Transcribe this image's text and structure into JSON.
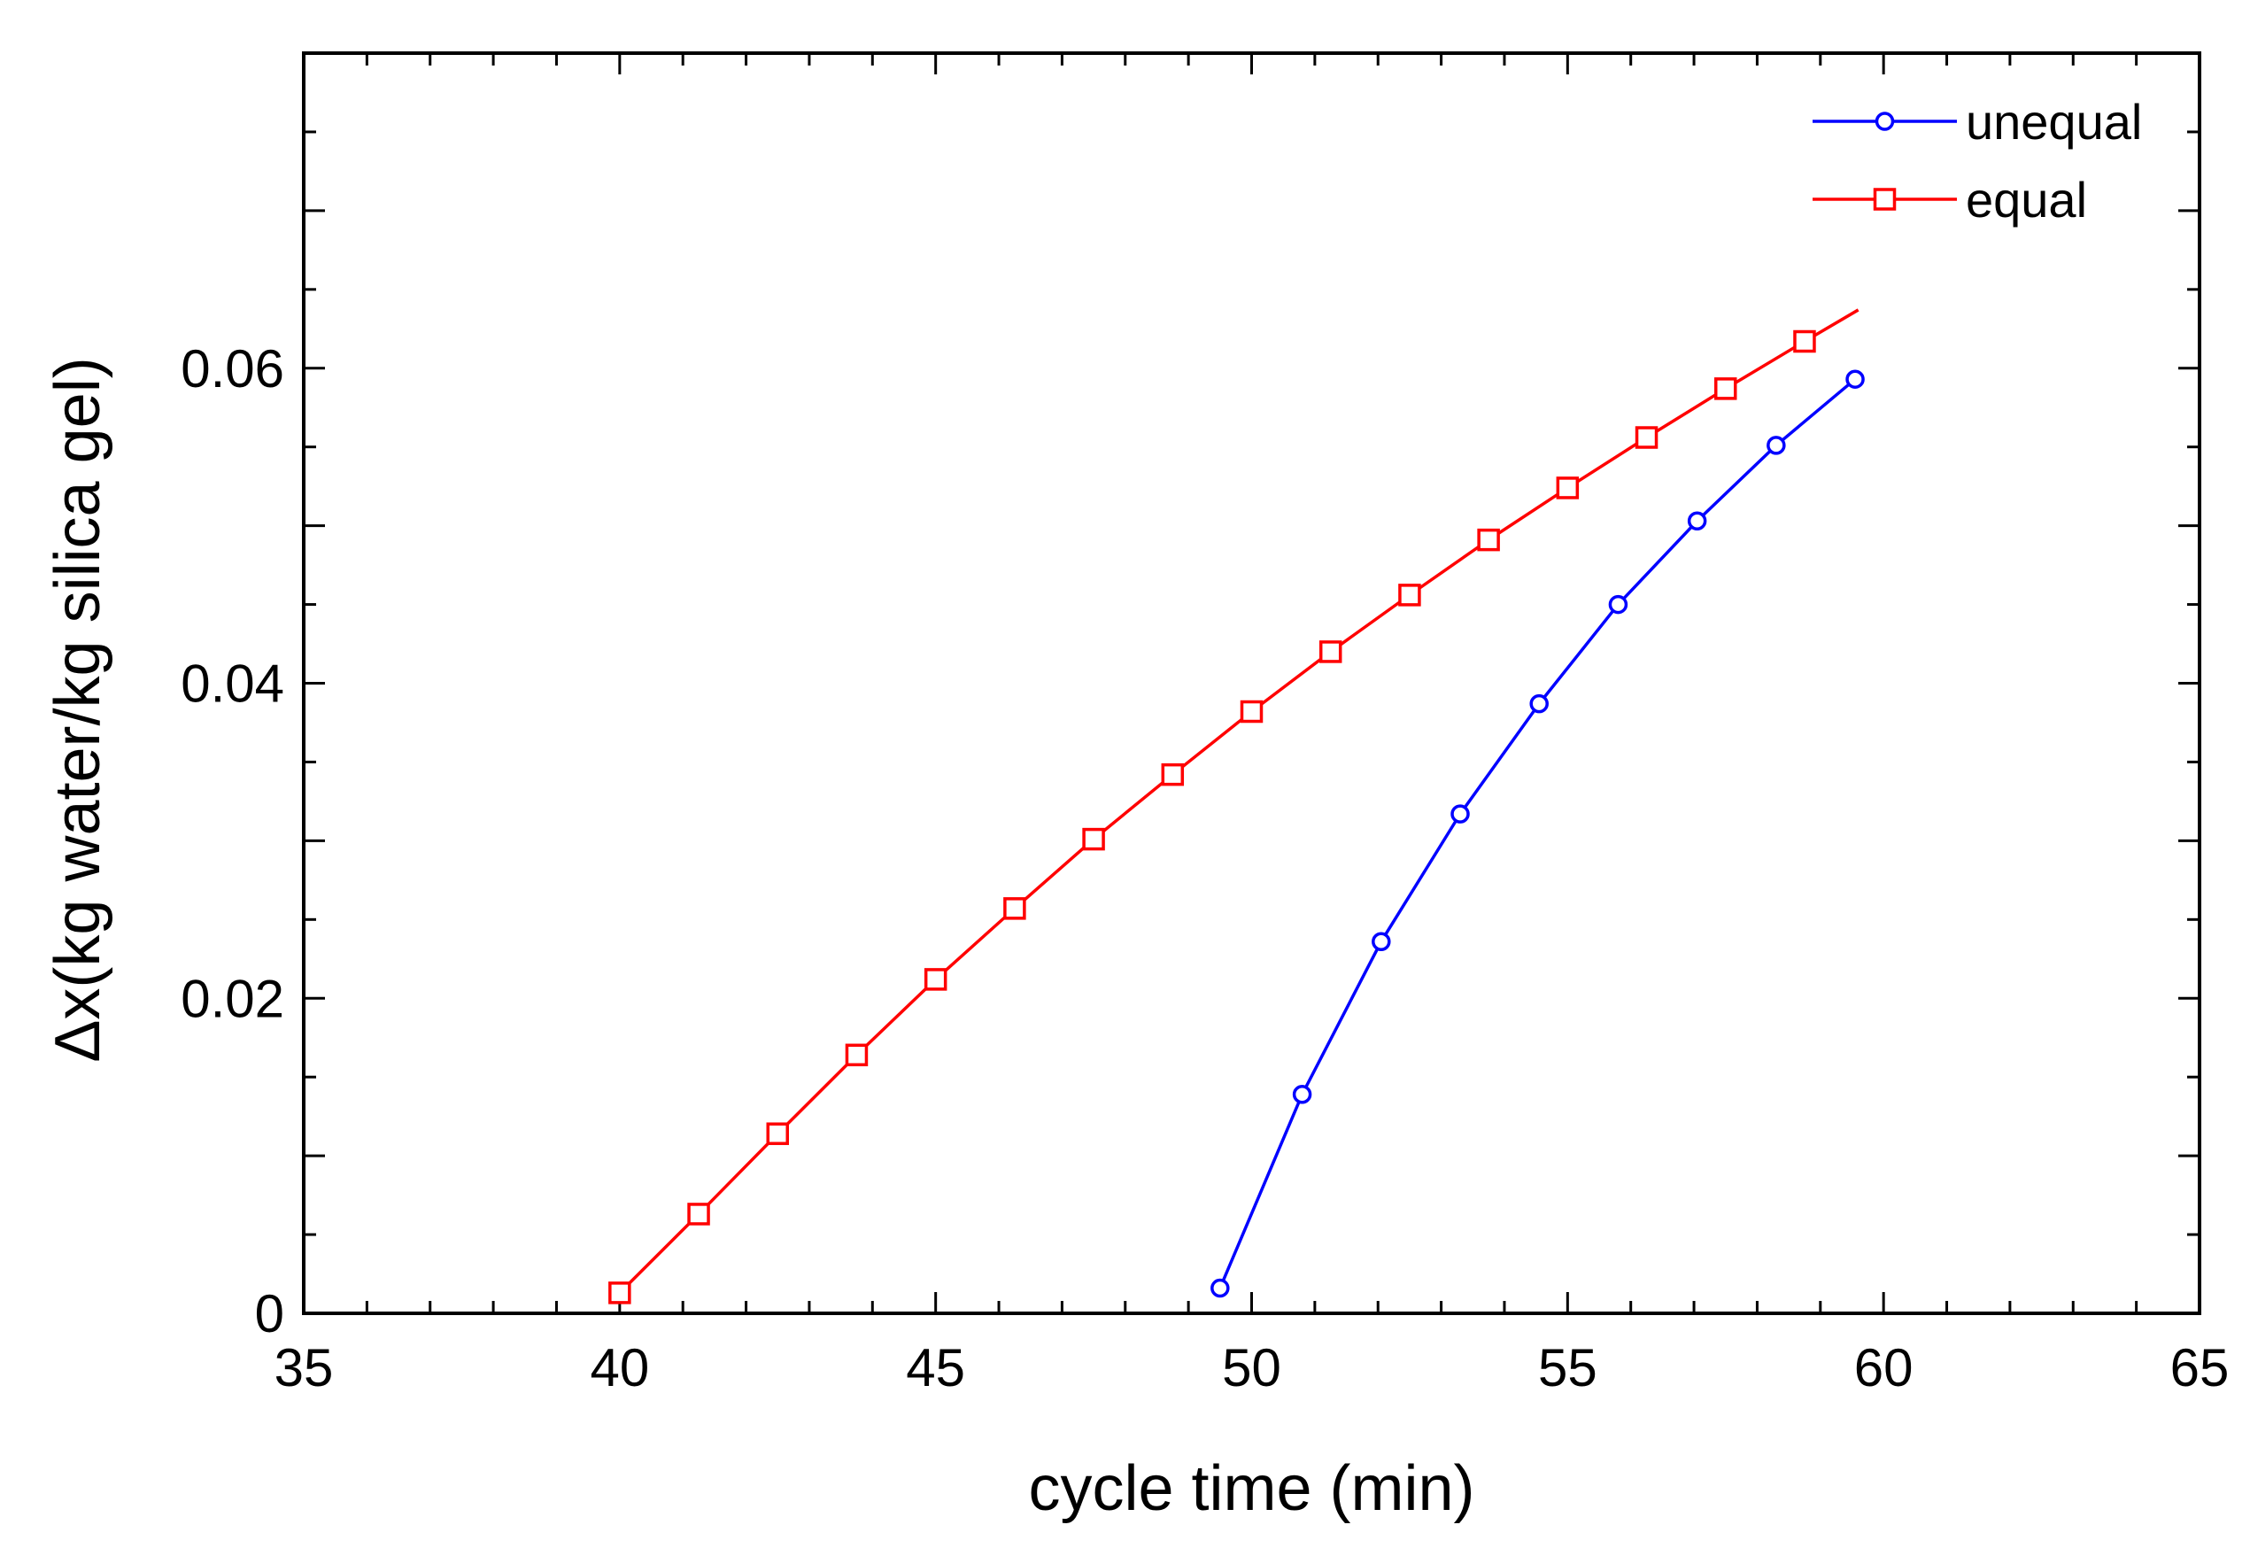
{
  "chart_data": {
    "type": "line",
    "title": "",
    "xlabel": "cycle time (min)",
    "ylabel": "Δx(kg water/kg silica gel)",
    "xlim": [
      35,
      65
    ],
    "ylim": [
      0,
      0.08
    ],
    "x_ticks": [
      35,
      40,
      45,
      50,
      55,
      60,
      65
    ],
    "x_tick_labels": [
      "35",
      "40",
      "45",
      "50",
      "55",
      "60",
      "65"
    ],
    "y_ticks": [
      0,
      0.02,
      0.04,
      0.06
    ],
    "y_tick_labels": [
      "0",
      "0.02",
      "0.04",
      "0.06"
    ],
    "grid": false,
    "legend_position": "top-right",
    "series": [
      {
        "name": "unequal",
        "color": "#0000ff",
        "marker": "circle",
        "x": [
          49.5,
          50.8,
          52.05,
          53.3,
          54.55,
          55.8,
          57.05,
          58.3,
          59.55
        ],
        "y": [
          0.0016,
          0.0139,
          0.0236,
          0.0317,
          0.0387,
          0.045,
          0.0503,
          0.0551,
          0.0593
        ]
      },
      {
        "name": "equal",
        "color": "#ff0000",
        "marker": "square",
        "x": [
          40.0,
          41.25,
          42.5,
          43.75,
          45.0,
          46.25,
          47.5,
          48.75,
          50.0,
          51.25,
          52.5,
          53.75,
          55.0,
          56.25,
          57.5,
          58.75,
          59.6
        ],
        "y": [
          0.0013,
          0.0063,
          0.0114,
          0.0164,
          0.0212,
          0.0257,
          0.0301,
          0.0342,
          0.0382,
          0.042,
          0.0456,
          0.0491,
          0.0524,
          0.0556,
          0.0587,
          0.0617,
          0.0637
        ]
      }
    ]
  }
}
